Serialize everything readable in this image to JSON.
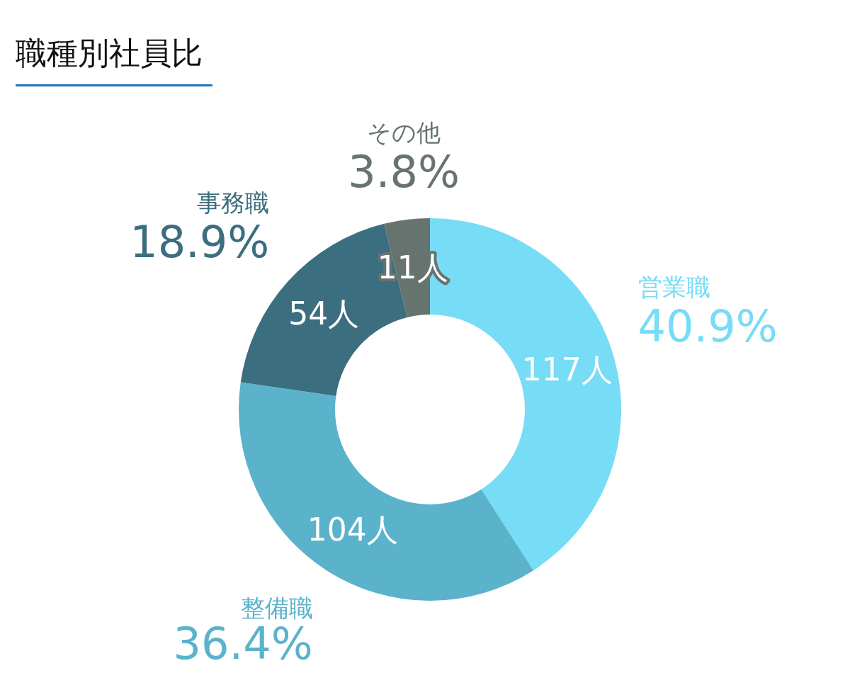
{
  "chart_data": {
    "type": "donut",
    "title": "職種別社員比",
    "categories": [
      "営業職",
      "整備職",
      "事務職",
      "その他"
    ],
    "values": [
      117,
      104,
      54,
      11
    ],
    "colors": [
      "#77dcf5",
      "#5ab3cb",
      "#3b6e7e",
      "#67736f"
    ],
    "value_labels": [
      "117人",
      "104人",
      "54人",
      "11人"
    ],
    "annotations": [
      "40.9%",
      "36.4%",
      "18.9%",
      "3.8%"
    ],
    "legend": false
  }
}
